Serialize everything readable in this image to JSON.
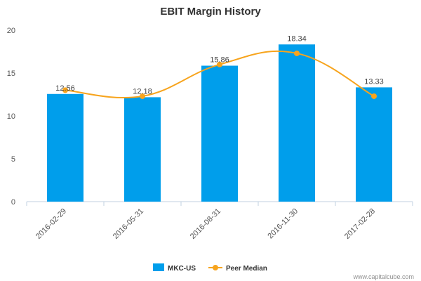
{
  "chart_data": {
    "type": "bar",
    "title": "EBIT Margin History",
    "categories": [
      "2016-02-29",
      "2016-05-31",
      "2016-08-31",
      "2016-11-30",
      "2017-02-28"
    ],
    "ylim": [
      0,
      20
    ],
    "yticks": [
      0,
      5,
      10,
      15,
      20
    ],
    "grid": false,
    "legend_position": "bottom",
    "series": [
      {
        "name": "MKC-US",
        "type": "bar",
        "color": "#009EEB",
        "values": [
          12.56,
          12.18,
          15.86,
          18.34,
          13.33
        ],
        "labels": [
          "12.56",
          "12.18",
          "15.86",
          "18.34",
          "13.33"
        ]
      },
      {
        "name": "Peer Median",
        "type": "line",
        "smooth": true,
        "color": "#F7A41D",
        "values": [
          13.0,
          12.3,
          16.0,
          17.3,
          12.3
        ]
      }
    ]
  },
  "credit": "www.capitalcube.com"
}
